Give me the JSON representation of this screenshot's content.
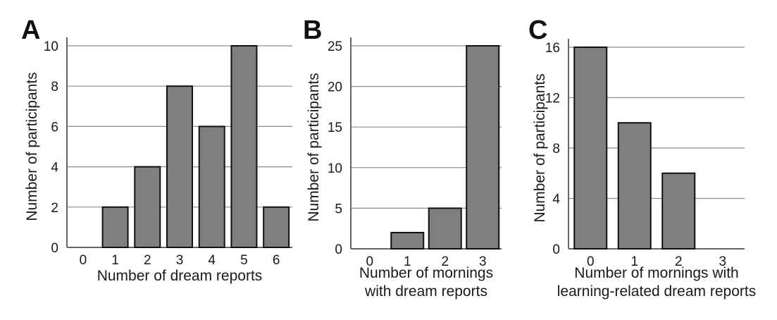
{
  "colors": {
    "bar_fill": "#7f7f7f",
    "bar_stroke": "#111111",
    "grid": "#8c8c8c",
    "axis": "#666666"
  },
  "chart_data": [
    {
      "type": "bar",
      "panel_label": "A",
      "categories": [
        "0",
        "1",
        "2",
        "3",
        "4",
        "5",
        "6"
      ],
      "values": [
        0,
        2,
        4,
        8,
        6,
        10,
        2
      ],
      "title": "",
      "xlabel": [
        "Number of dream reports"
      ],
      "ylabel": "Number of participants",
      "ylim": [
        0,
        10
      ],
      "yticks": [
        "0",
        "2",
        "4",
        "6",
        "8",
        "10"
      ],
      "grid": true
    },
    {
      "type": "bar",
      "panel_label": "B",
      "categories": [
        "0",
        "1",
        "2",
        "3"
      ],
      "values": [
        0,
        2,
        5,
        25
      ],
      "title": "",
      "xlabel": [
        "Number of mornings",
        "with dream reports"
      ],
      "ylabel": "Number of participants",
      "ylim": [
        0,
        25
      ],
      "yticks": [
        "0",
        "5",
        "10",
        "15",
        "20",
        "25"
      ],
      "grid": true
    },
    {
      "type": "bar",
      "panel_label": "C",
      "categories": [
        "0",
        "1",
        "2",
        "3"
      ],
      "values": [
        16,
        10,
        6,
        0
      ],
      "title": "",
      "xlabel": [
        "Number of mornings with",
        "learning-related dream reports"
      ],
      "ylabel": "Number of participants",
      "ylim": [
        0,
        16
      ],
      "yticks": [
        "0",
        "4",
        "8",
        "12",
        "16"
      ],
      "grid": true
    }
  ]
}
